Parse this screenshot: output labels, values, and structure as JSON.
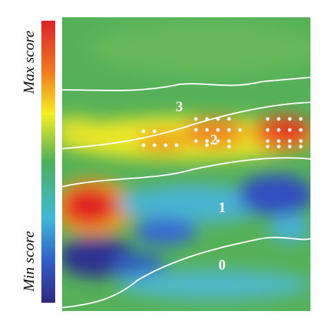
{
  "colorbar": {
    "max_label": "Max score",
    "min_label": "Min score"
  },
  "regions": [
    {
      "label": "3"
    },
    {
      "label": "2"
    },
    {
      "label": "1"
    },
    {
      "label": "0"
    }
  ]
}
